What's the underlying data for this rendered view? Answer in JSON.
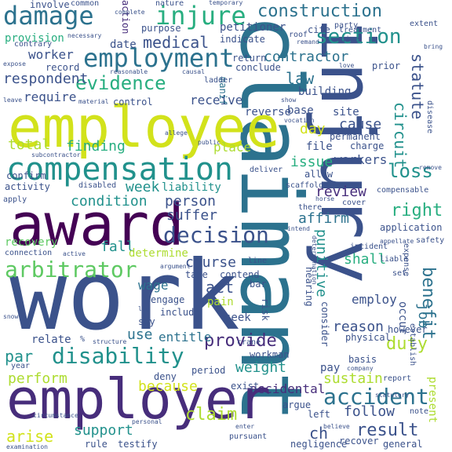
{
  "words": {
    "work": "work",
    "claimant": "claimant",
    "injury": "injury",
    "employee": "employee",
    "employer": "employer",
    "award": "award",
    "compensation": "compensation",
    "employment": "employment",
    "damage": "damage",
    "injure": "injure",
    "construction": "construction",
    "section": "section",
    "decision": "decision",
    "arbitrator": "arbitrator",
    "disability": "disability",
    "accident": "accident",
    "evidence": "evidence",
    "medical": "medical",
    "contractor": "contractor",
    "worker": "worker",
    "respondent": "respondent",
    "law": "law",
    "statute": "statute",
    "circuit": "circuit",
    "loss": "loss",
    "right": "right",
    "benefit": "benefit",
    "provide": "provide",
    "result": "result",
    "claim": "claim",
    "duty": "duty",
    "condition": "condition",
    "person": "person",
    "suffer": "suffer",
    "review": "review",
    "affirm": "affirm",
    "cause": "cause",
    "finding": "finding",
    "total": "total",
    "week": "week",
    "liability": "liability",
    "receive": "receive",
    "require": "require",
    "record": "record",
    "provision": "provision",
    "day": "day",
    "workers": "workers",
    "issue": "issue",
    "file": "file",
    "place": "place",
    "punitive": "punitive",
    "shall": "shall",
    "employ": "employ",
    "course": "course",
    "fall": "fall",
    "determine": "determine",
    "recovery": "recovery",
    "act": "act",
    "wage": "wage",
    "weight": "weight",
    "sustain": "sustain",
    "follow": "follow",
    "job": "job",
    "perform": "perform",
    "support": "support",
    "because": "because",
    "arise": "arise",
    "ch": "ch",
    "par": "par",
    "relate": "relate",
    "use": "use",
    "entitle": "entitle",
    "pain": "pain",
    "seek": "seek",
    "reason": "reason",
    "occur": "occur",
    "accidental": "accidental",
    "pay": "pay",
    "present": "present",
    "involve": "involve",
    "common": "common",
    "nature": "nature",
    "temporary": "temporary",
    "petitioner": "petitioner",
    "roof": "roof",
    "cite": "cite",
    "treatment": "treatment",
    "extent": "extent",
    "date": "date",
    "action": "action",
    "purpose": "purpose",
    "indicate": "indicate",
    "party": "party",
    "give": "give",
    "contrary": "contrary",
    "return": "return",
    "conclude": "conclude",
    "prior": "prior",
    "building": "building",
    "base": "base",
    "ladder": "ladder",
    "control": "control",
    "reverse": "reverse",
    "site": "site",
    "permanent": "permanent",
    "charge": "charge",
    "disease": "disease",
    "confirm": "confirm",
    "activity": "activity",
    "disabled": "disabled",
    "apply": "apply",
    "allow": "allow",
    "scaffold": "scaffold",
    "deliver": "deliver",
    "horse": "horse",
    "cover": "cover",
    "compensable": "compensable",
    "application": "application",
    "there": "there",
    "safety": "safety",
    "incident": "incident",
    "expense": "expense",
    "connection": "connection",
    "active": "active",
    "appellate": "appellate",
    "hearing": "hearing",
    "liable": "liable",
    "set": "set",
    "establish": "establish",
    "take": "take",
    "contend": "contend",
    "risk": "risk",
    "bar": "bar",
    "engage": "engage",
    "include": "include",
    "say": "say",
    "consider": "consider",
    "however": "however",
    "physical": "physical",
    "crane": "crane",
    "workman": "workman",
    "period": "period",
    "deny": "deny",
    "year": "year",
    "basis": "basis",
    "exist": "exist",
    "argue": "argue",
    "left": "left",
    "report": "report",
    "note": "note",
    "rule": "rule",
    "testify": "testify",
    "personal": "personal",
    "negligence": "negligence",
    "recover": "recover",
    "general": "general",
    "pursuant": "pursuant",
    "line": "line",
    "structure": "structure",
    "manif": "manif",
    "expose": "expose",
    "leave": "leave",
    "material": "material",
    "show": "show",
    "public": "public",
    "log": "log",
    "determination": "determination",
    "remove": "remove",
    "love": "love",
    "bring": "bring",
    "circumstance": "circumstance",
    "examination": "examination",
    "necessary": "necessary",
    "enter": "enter",
    "statutory": "statutory",
    "company": "company",
    "believe": "believe",
    "reasonable": "reasonable",
    "complete": "complete",
    "remand": "remand",
    "causal": "causal",
    "snow": "snow",
    "allege": "allege",
    "subcontractor": "subcontractor",
    "intend": "intend",
    "argument": "argument",
    "vocation": "vocation",
    "pct": "%"
  }
}
